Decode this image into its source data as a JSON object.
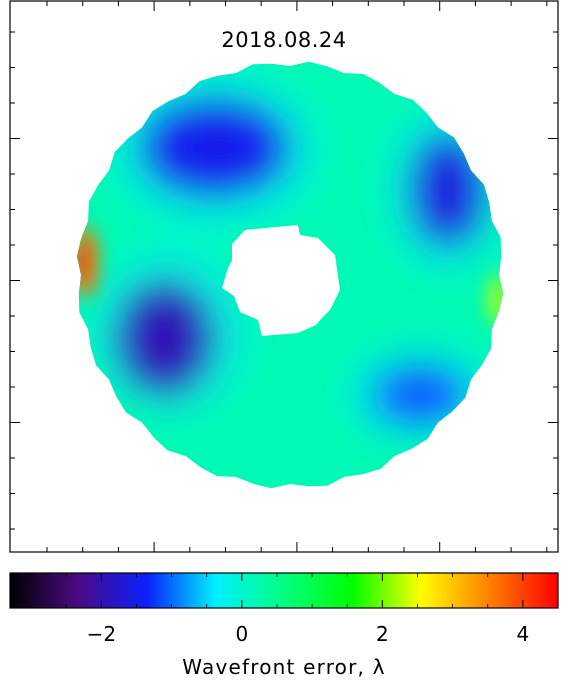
{
  "chart_data": {
    "type": "heatmap",
    "title": "2018.08.24",
    "colorbar": {
      "label": "Wavefront error, λ",
      "range": [
        -3.3,
        4.5
      ],
      "ticks": [
        {
          "value": -2,
          "label": "−2"
        },
        {
          "value": 0,
          "label": "0"
        },
        {
          "value": 2,
          "label": "2"
        },
        {
          "value": 4,
          "label": "4"
        }
      ],
      "colormap": [
        "#000000",
        "#4b0a82",
        "#0a20ff",
        "#00f0ff",
        "#00ff80",
        "#00ff00",
        "#ffff00",
        "#ff8000",
        "#ff0000"
      ]
    },
    "map": {
      "shape": "annular pupil",
      "obscuration": "central",
      "background": 0.2,
      "regions": [
        {
          "name": "upper-left low",
          "value": -1.5
        },
        {
          "name": "left low",
          "value": -1.9
        },
        {
          "name": "upper-right low",
          "value": -1.6
        },
        {
          "name": "lower-right low",
          "value": -1.1
        },
        {
          "name": "left edge high",
          "value": 3.6
        },
        {
          "name": "right edge high",
          "value": 2.3
        }
      ]
    }
  }
}
